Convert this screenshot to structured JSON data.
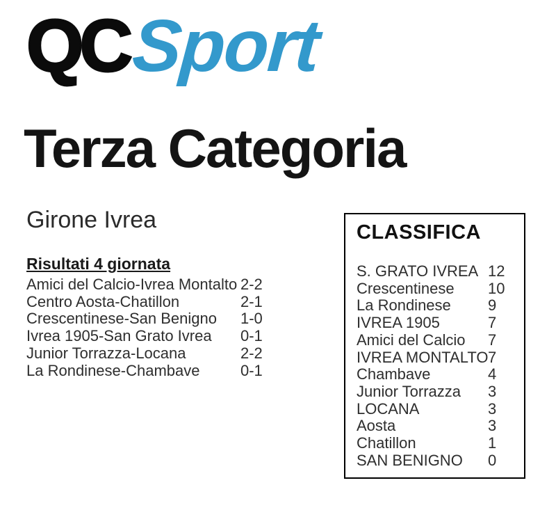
{
  "logo": {
    "qc": "QC",
    "sport": "Sport",
    "sport_color": "#3399cc"
  },
  "page_title": "Terza Categoria",
  "group_title": "Girone Ivrea",
  "results": {
    "heading": "Risultati 4 giornata",
    "matches": [
      {
        "match": "Amici del Calcio-Ivrea Montalto",
        "score": "2-2"
      },
      {
        "match": "Centro Aosta-Chatillon",
        "score": "2-1"
      },
      {
        "match": "Crescentinese-San Benigno",
        "score": "1-0"
      },
      {
        "match": "Ivrea 1905-San Grato Ivrea",
        "score": "0-1"
      },
      {
        "match": "Junior Torrazza-Locana",
        "score": "2-2"
      },
      {
        "match": "La Rondinese-Chambave",
        "score": "0-1"
      }
    ]
  },
  "classifica": {
    "heading": "CLASSIFICA",
    "standings": [
      {
        "team": "S. GRATO IVREA",
        "points": "12"
      },
      {
        "team": "Crescentinese",
        "points": "10"
      },
      {
        "team": "La Rondinese",
        "points": "9"
      },
      {
        "team": "IVREA 1905",
        "points": "7"
      },
      {
        "team": "Amici del Calcio",
        "points": "7"
      },
      {
        "team": "IVREA MONTALTO",
        "points": "7"
      },
      {
        "team": "Chambave",
        "points": "4"
      },
      {
        "team": "Junior Torrazza",
        "points": "3"
      },
      {
        "team": "LOCANA",
        "points": "3"
      },
      {
        "team": "Aosta",
        "points": "3"
      },
      {
        "team": "Chatillon",
        "points": "1"
      },
      {
        "team": "SAN BENIGNO",
        "points": "0"
      }
    ]
  }
}
